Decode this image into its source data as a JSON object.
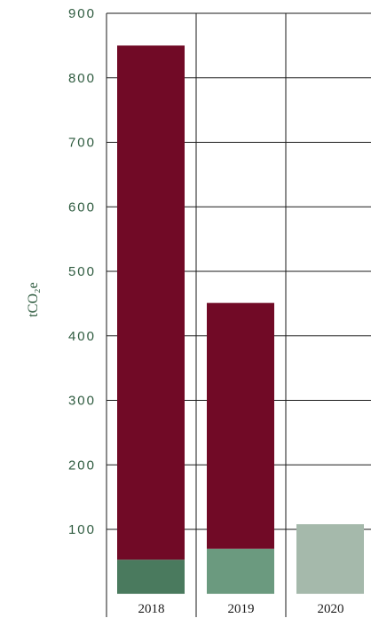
{
  "chart_data": {
    "type": "bar",
    "stacked": true,
    "categories": [
      "2018",
      "2019",
      "2020"
    ],
    "series": [
      {
        "values": [
          53,
          70,
          108
        ],
        "colors": [
          "#4a7a5e",
          "#6b9a7f",
          "#a5b9ab"
        ]
      },
      {
        "values": [
          797,
          381,
          0
        ],
        "colors": [
          "#710a26",
          "#710a26",
          "#710a26"
        ]
      }
    ],
    "ylabel": "tCO₂e",
    "ylim": [
      0,
      900
    ],
    "yticks": [
      100,
      200,
      300,
      400,
      500,
      600,
      700,
      800,
      900
    ],
    "grid": true,
    "legend": "none"
  },
  "colors": {
    "axis_text": "#2e5b3f",
    "grid": "#1a1a1a",
    "category_text": "#1a1a1a"
  }
}
